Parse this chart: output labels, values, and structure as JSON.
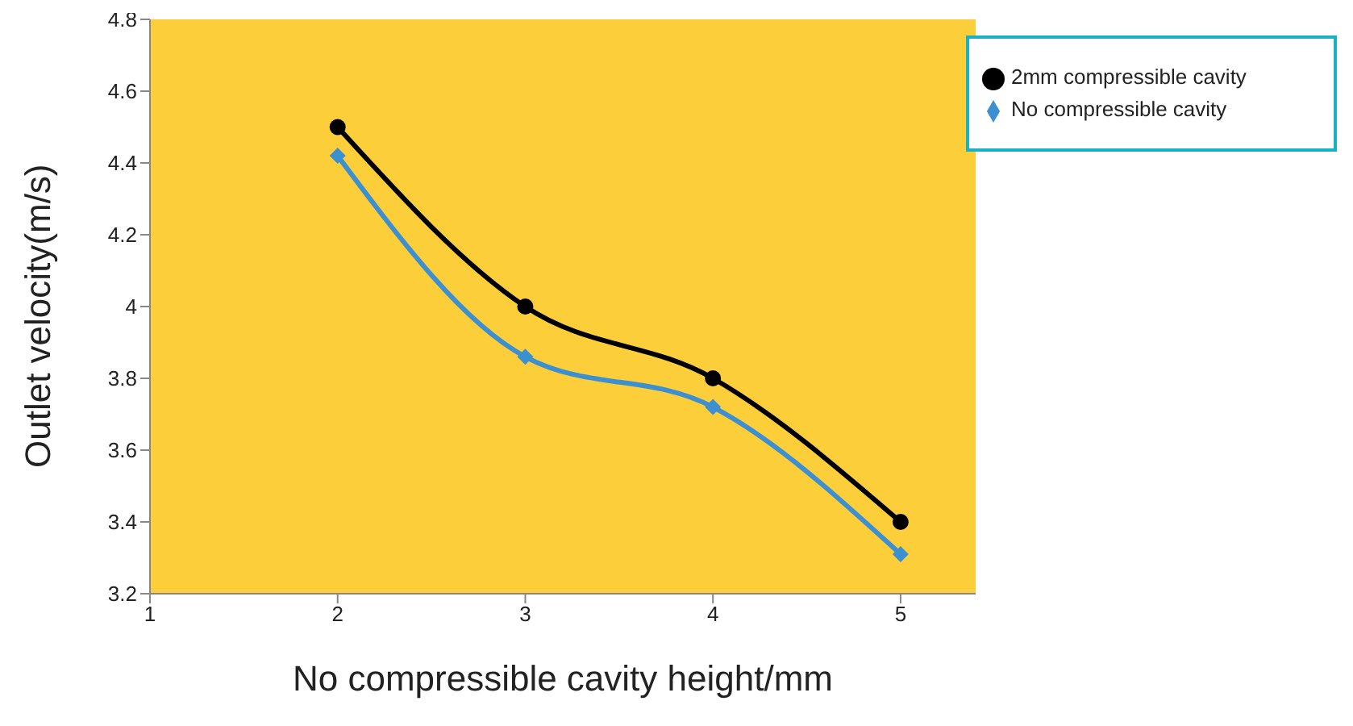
{
  "chart_data": {
    "type": "line",
    "xlabel": "No compressible cavity height/mm",
    "ylabel": "Outlet velocity(m/s)",
    "x": [
      2,
      3,
      4,
      5
    ],
    "series": [
      {
        "name": "No compressible cavity",
        "color": "#3c8fd0",
        "marker": "diamond",
        "values": [
          4.42,
          3.86,
          3.72,
          3.31
        ]
      },
      {
        "name": "2mm compressible cavity",
        "color": "#000000",
        "marker": "circle",
        "values": [
          4.5,
          4.0,
          3.8,
          3.4
        ]
      }
    ],
    "xlim": [
      1,
      5.4
    ],
    "xticks": [
      1,
      2,
      3,
      4,
      5
    ],
    "ylim": [
      3.2,
      4.8
    ],
    "yticks": [
      3.2,
      3.4,
      3.6,
      3.8,
      4,
      4.2,
      4.4,
      4.6,
      4.8
    ],
    "grid": false,
    "legend": "top right"
  }
}
